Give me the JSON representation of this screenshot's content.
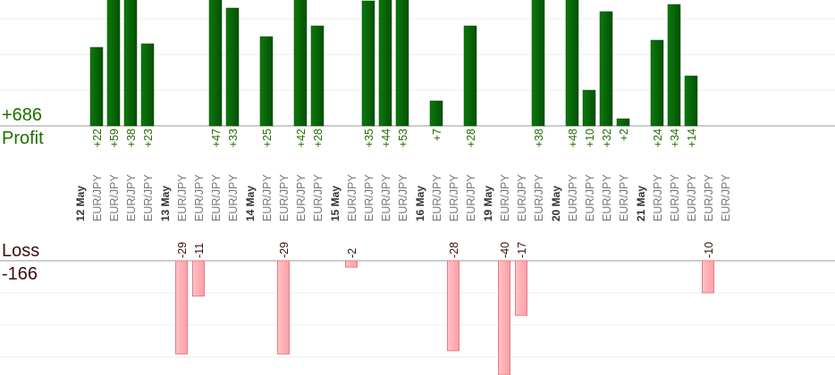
{
  "summary": {
    "profit_total": "+686",
    "profit_label": "Profit",
    "loss_label": "Loss",
    "loss_total": "-166"
  },
  "colors": {
    "profit_bar": "#0a6b0a",
    "profit_bar_dark": "#064d06",
    "loss_bar": "#ffb0b5",
    "loss_border": "#e07f86",
    "profit_text": "#1f6f00",
    "loss_text": "#3a0f0f",
    "date_text": "#333333",
    "symbol_text": "#777777",
    "axis": "#9a9a9a",
    "grid": "#ececec"
  },
  "chart_data": {
    "type": "bar",
    "axes": {
      "profit_max_visible": 35,
      "loss_max_visible": 40,
      "gridlines": true
    },
    "categories": [
      "12 May",
      "EUR/JPY",
      "EUR/JPY",
      "EUR/JPY",
      "EUR/JPY",
      "13 May",
      "EUR/JPY",
      "EUR/JPY",
      "EUR/JPY",
      "EUR/JPY",
      "14 May",
      "EUR/JPY",
      "EUR/JPY",
      "EUR/JPY",
      "EUR/JPY",
      "15 May",
      "EUR/JPY",
      "EUR/JPY",
      "EUR/JPY",
      "EUR/JPY",
      "16 May",
      "EUR/JPY",
      "EUR/JPY",
      "EUR/JPY",
      "19 May",
      "EUR/JPY",
      "EUR/JPY",
      "EUR/JPY",
      "20 May",
      "EUR/JPY",
      "EUR/JPY",
      "EUR/JPY",
      "EUR/JPY",
      "21 May",
      "EUR/JPY",
      "EUR/JPY",
      "EUR/JPY",
      "EUR/JPY",
      "EUR/JPY"
    ],
    "is_date": [
      true,
      false,
      false,
      false,
      false,
      true,
      false,
      false,
      false,
      false,
      true,
      false,
      false,
      false,
      false,
      true,
      false,
      false,
      false,
      false,
      true,
      false,
      false,
      false,
      true,
      false,
      false,
      false,
      true,
      false,
      false,
      false,
      false,
      true,
      false,
      false,
      false,
      false,
      false
    ],
    "values": [
      null,
      22,
      59,
      38,
      23,
      null,
      -29,
      -11,
      47,
      33,
      null,
      25,
      -29,
      42,
      28,
      null,
      -2,
      35,
      44,
      53,
      null,
      7,
      -28,
      28,
      null,
      -40,
      -17,
      38,
      null,
      48,
      10,
      32,
      2,
      null,
      24,
      34,
      14,
      -10,
      null
    ],
    "value_labels": [
      "",
      "+22",
      "+59",
      "+38",
      "+23",
      "",
      "-29",
      "-11",
      "+47",
      "+33",
      "",
      "+25",
      "-29",
      "+42",
      "+28",
      "",
      "-2",
      "+35",
      "+44",
      "+53",
      "",
      "+7",
      "-28",
      "+28",
      "",
      "-40",
      "-17",
      "+38",
      "",
      "+48",
      "+10",
      "+32",
      "+2",
      "",
      "+24",
      "+34",
      "+14",
      "-10",
      ""
    ]
  }
}
